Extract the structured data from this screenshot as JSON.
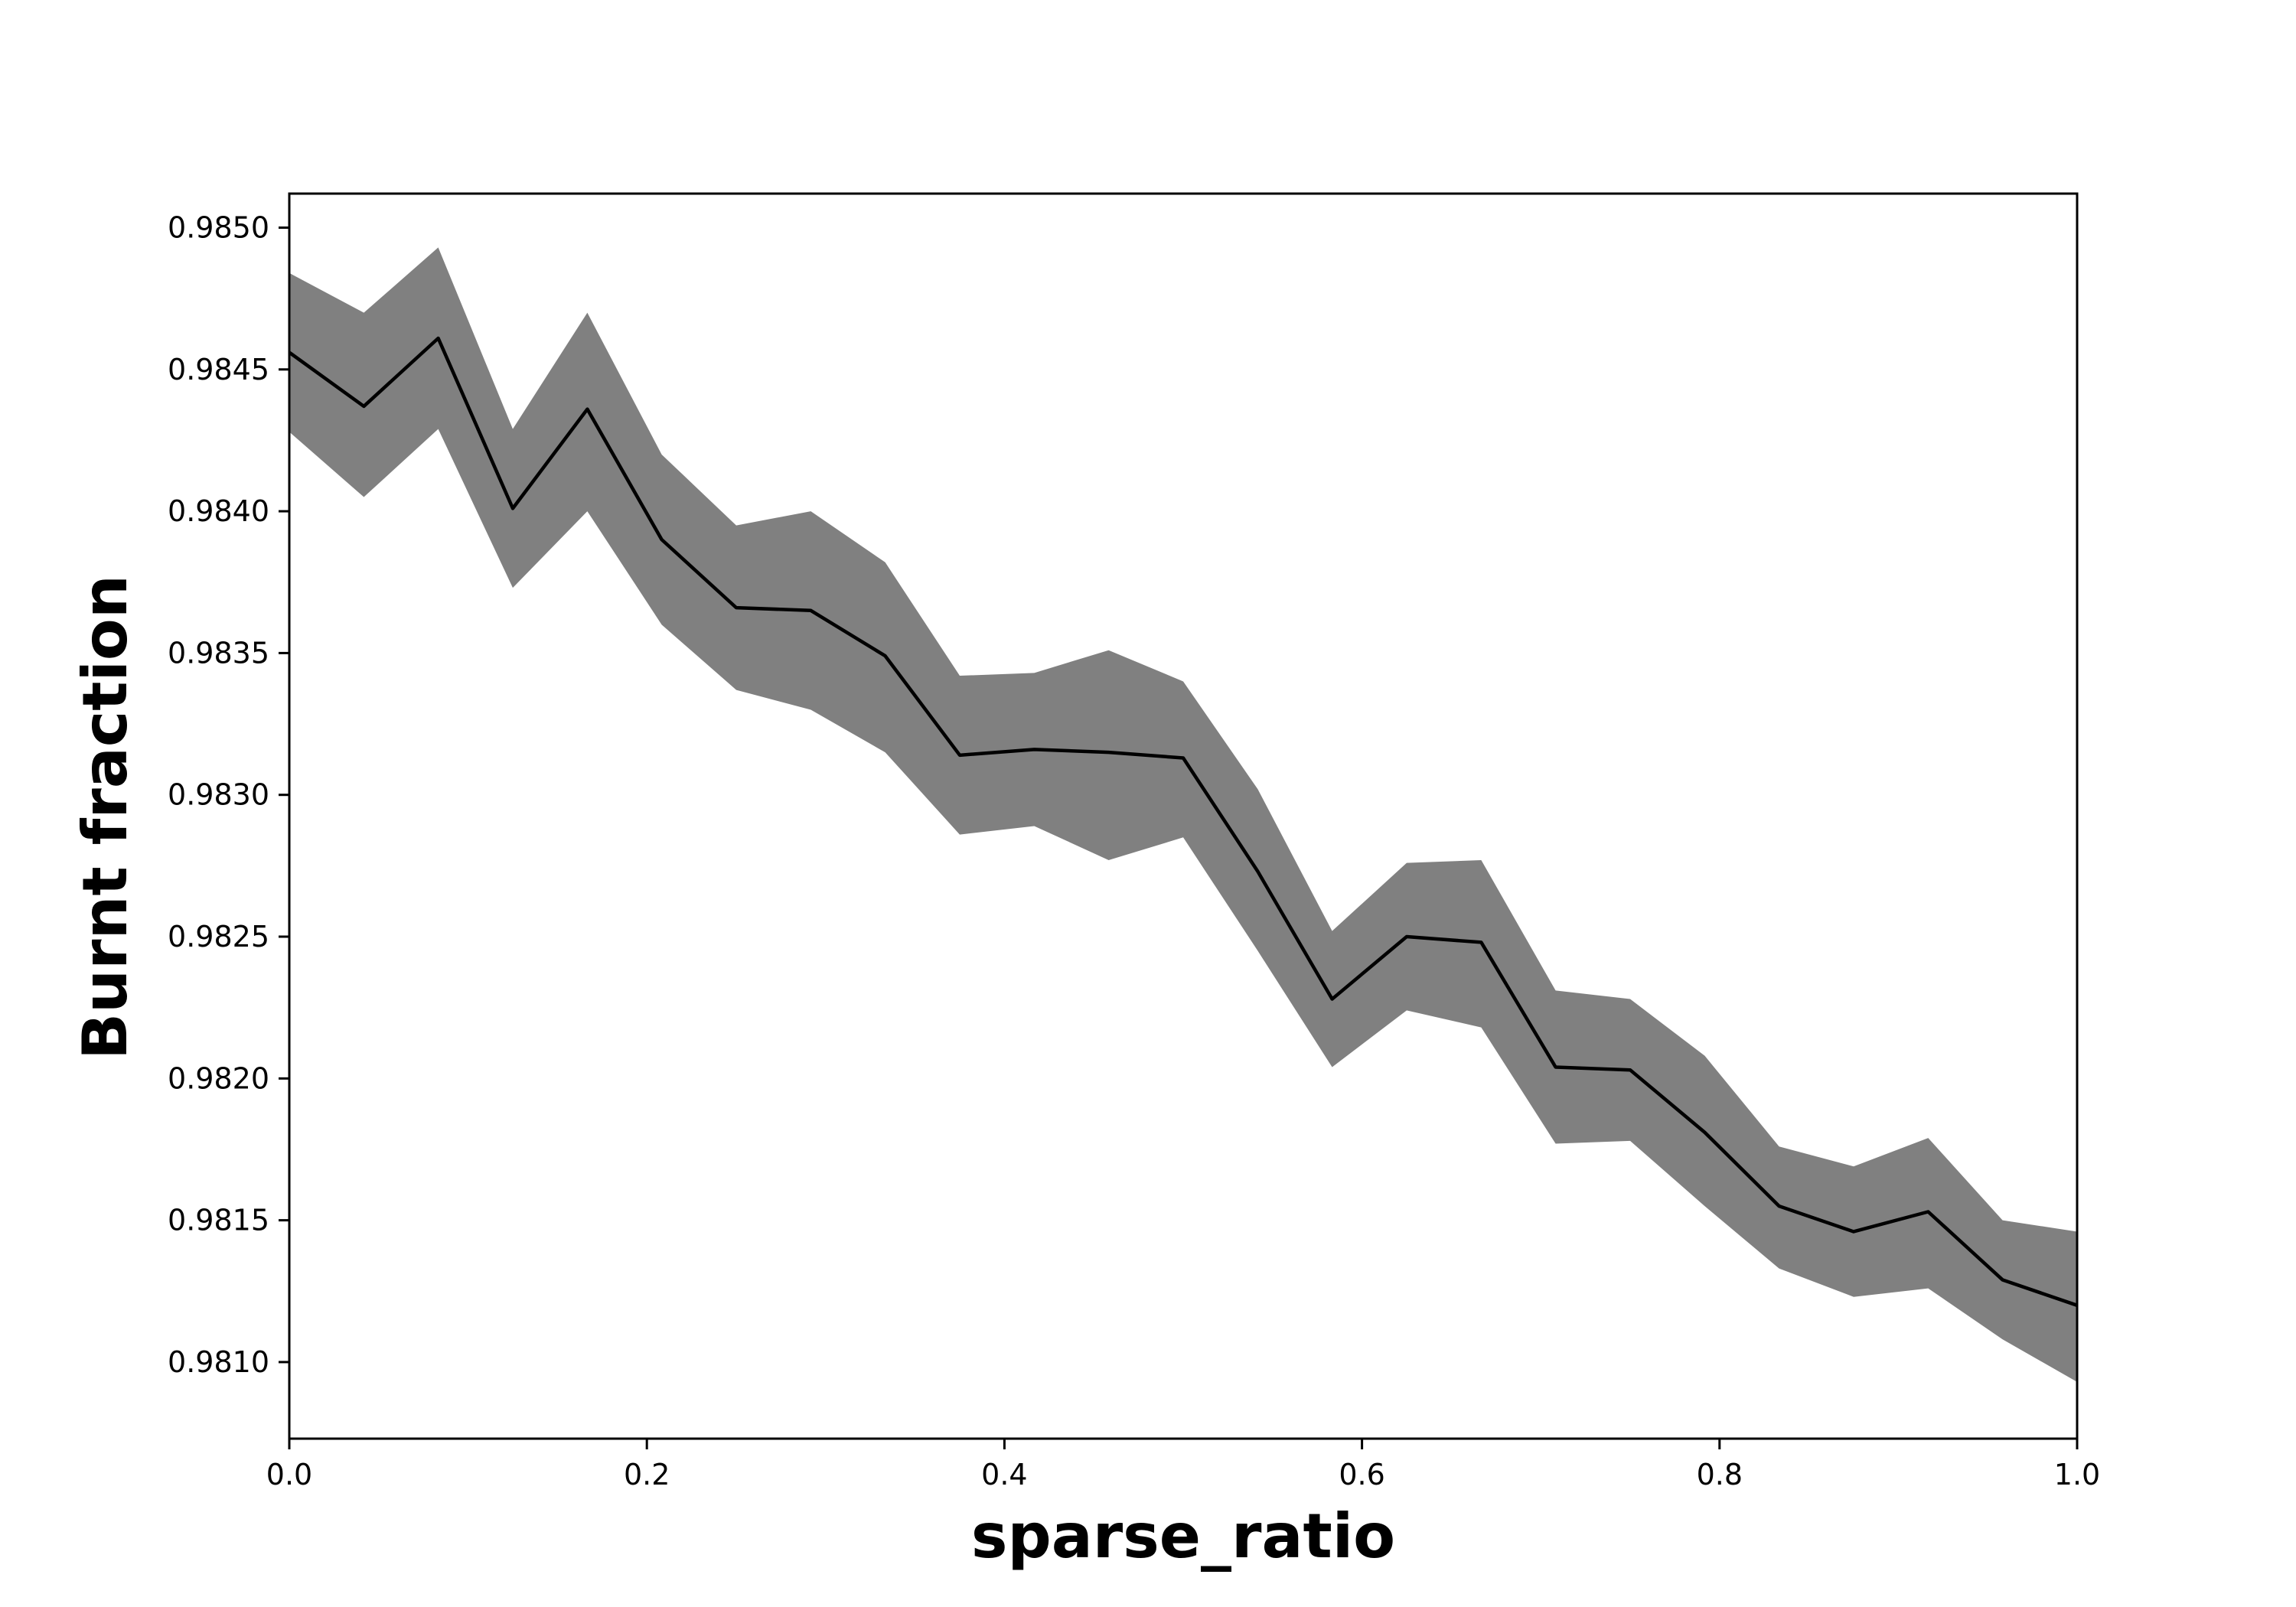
{
  "chart_data": {
    "type": "line",
    "title": "",
    "xlabel": "sparse_ratio",
    "ylabel": "Burnt fraction",
    "xlim": [
      0.0,
      1.0
    ],
    "ylim": [
      0.98073,
      0.98512
    ],
    "grid": false,
    "legend": "none",
    "x_ticks": [
      0.0,
      0.2,
      0.4,
      0.6,
      0.8,
      1.0
    ],
    "x_tick_labels": [
      "0.0",
      "0.2",
      "0.4",
      "0.6",
      "0.8",
      "1.0"
    ],
    "y_ticks": [
      0.981,
      0.9815,
      0.982,
      0.9825,
      0.983,
      0.9835,
      0.984,
      0.9845,
      0.985
    ],
    "y_tick_labels": [
      "0.9810",
      "0.9815",
      "0.9820",
      "0.9825",
      "0.9830",
      "0.9835",
      "0.9840",
      "0.9845",
      "0.9850"
    ],
    "colors": {
      "line": "#000000",
      "band": "#808080",
      "axes": "#000000",
      "background": "#ffffff"
    },
    "x": [
      0.0,
      0.0417,
      0.0833,
      0.125,
      0.1667,
      0.2083,
      0.25,
      0.2917,
      0.3333,
      0.375,
      0.4167,
      0.4583,
      0.5,
      0.5417,
      0.5833,
      0.625,
      0.6667,
      0.7083,
      0.75,
      0.7917,
      0.8333,
      0.875,
      0.9167,
      0.9583,
      1.0
    ],
    "series": [
      {
        "values": [
          0.98456,
          0.98437,
          0.98461,
          0.98401,
          0.98436,
          0.9839,
          0.98366,
          0.98365,
          0.98349,
          0.98314,
          0.98316,
          0.98315,
          0.98313,
          0.98273,
          0.98228,
          0.9825,
          0.98248,
          0.98204,
          0.98203,
          0.98181,
          0.98155,
          0.98146,
          0.98153,
          0.98129,
          0.9812
        ],
        "lower": [
          0.98428,
          0.98405,
          0.98429,
          0.98373,
          0.984,
          0.9836,
          0.98337,
          0.9833,
          0.98315,
          0.98286,
          0.98289,
          0.98277,
          0.98285,
          0.98245,
          0.98204,
          0.98224,
          0.98218,
          0.98177,
          0.98178,
          0.98155,
          0.98133,
          0.98123,
          0.98126,
          0.98108,
          0.98093
        ],
        "upper": [
          0.98484,
          0.9847,
          0.98493,
          0.98429,
          0.9847,
          0.9842,
          0.98395,
          0.984,
          0.98382,
          0.98342,
          0.98343,
          0.98351,
          0.9834,
          0.98302,
          0.98252,
          0.98276,
          0.98277,
          0.98231,
          0.98228,
          0.98208,
          0.98176,
          0.98169,
          0.98179,
          0.9815,
          0.98146
        ]
      }
    ]
  }
}
